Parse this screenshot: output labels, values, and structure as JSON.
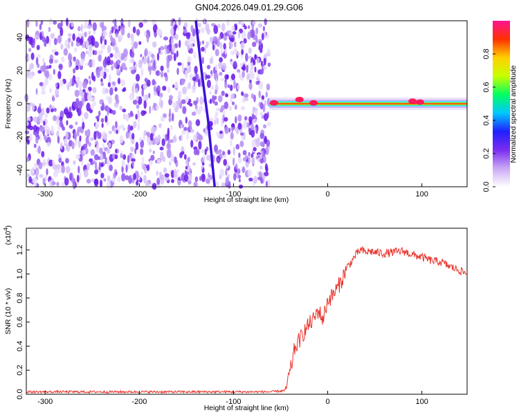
{
  "title": "GN04.2026.049.01.29.G06",
  "colors": {
    "snr_line": "#e8322a",
    "noise_scatter": "#6a1be8",
    "colormap": [
      "#ffffff",
      "#c9a8f5",
      "#7a2cf0",
      "#2020ff",
      "#00c8ff",
      "#00ff60",
      "#c8ff00",
      "#ffd000",
      "#ff3000",
      "#ff1493"
    ]
  },
  "chart_data": [
    {
      "type": "heatmap",
      "name": "spectrogram",
      "xlabel": "Height of straight line (km)",
      "ylabel": "Frequency (Hz)",
      "xlim": [
        -320,
        148
      ],
      "ylim": [
        -50,
        50
      ],
      "xticks": [
        -300,
        -200,
        -100,
        0,
        100
      ],
      "yticks": [
        -40,
        -20,
        0,
        20,
        40
      ],
      "noise_region_x": [
        -320,
        -62
      ],
      "signal_region_x": [
        -62,
        148
      ],
      "signal_frequency_hz": 0,
      "drift_line": [
        {
          "x": -140,
          "y": 50
        },
        {
          "x": -134,
          "y": 20
        },
        {
          "x": -127,
          "y": -10
        },
        {
          "x": -120,
          "y": -50
        }
      ],
      "signal_peaks": [
        {
          "x": -57,
          "y": 0.5
        },
        {
          "x": -30,
          "y": 2.5
        },
        {
          "x": -15,
          "y": 0.5
        },
        {
          "x": 90,
          "y": 1.5
        },
        {
          "x": 98,
          "y": 1.0
        }
      ],
      "colorbar": {
        "label": "Normalized spectral amplitude",
        "ticks": [
          "0.0",
          "0.2",
          "0.4",
          "0.6",
          "0.8"
        ],
        "range": [
          0,
          1
        ]
      }
    },
    {
      "type": "line",
      "name": "snr",
      "xlabel": "Height of straight line (km)",
      "ylabel": "SNR (10 * v/v)",
      "multiplier": "(x10",
      "multiplier_exp": "4",
      "multiplier_close": ")",
      "xlim": [
        -320,
        148
      ],
      "ylim": [
        0,
        1.38
      ],
      "xticks": [
        -300,
        -200,
        -100,
        0,
        100
      ],
      "yticks": [
        "0.0",
        "0.2",
        "0.4",
        "0.6",
        "0.8",
        "1.0",
        "1.2"
      ],
      "x": [
        -320,
        -100,
        -60,
        -45,
        -40,
        -35,
        -30,
        -25,
        -20,
        -15,
        -10,
        -5,
        0,
        5,
        10,
        15,
        20,
        25,
        30,
        35,
        40,
        45,
        50,
        60,
        70,
        80,
        90,
        100,
        110,
        120,
        130,
        140,
        148
      ],
      "y": [
        0.02,
        0.02,
        0.02,
        0.03,
        0.18,
        0.38,
        0.45,
        0.52,
        0.58,
        0.62,
        0.7,
        0.62,
        0.78,
        0.82,
        0.88,
        0.95,
        1.05,
        1.1,
        1.16,
        1.2,
        1.18,
        1.19,
        1.18,
        1.17,
        1.18,
        1.19,
        1.16,
        1.14,
        1.11,
        1.1,
        1.06,
        1.03,
        1.0
      ],
      "series": [
        {
          "values_ref": "y"
        }
      ]
    }
  ]
}
